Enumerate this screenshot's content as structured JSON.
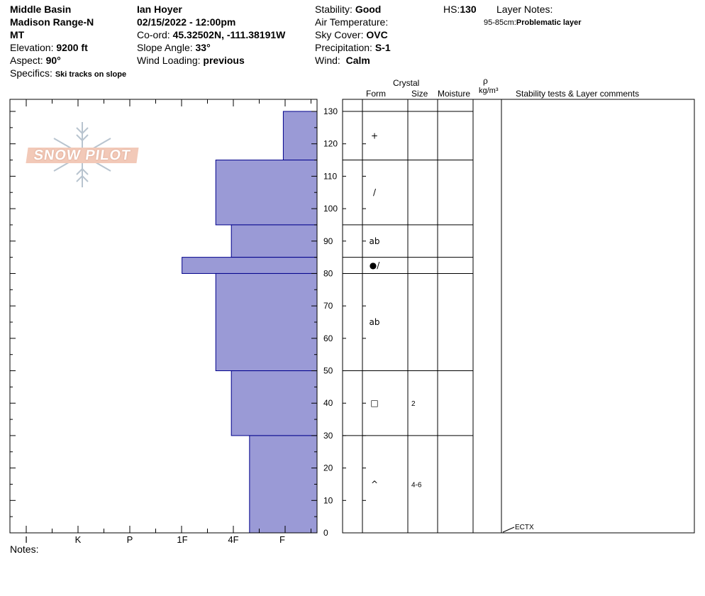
{
  "header": {
    "location": "Middle Basin",
    "range": "Madison Range-N",
    "state": "MT",
    "elevation_label": "Elevation:",
    "elevation_value": "9200 ft",
    "aspect_label": "Aspect:",
    "aspect_value": "90°",
    "specifics_label": "Specifics:",
    "specifics_value": "Ski tracks on slope",
    "observer": "Ian Hoyer",
    "datetime": "02/15/2022 - 12:00pm",
    "coord_label": "Co-ord:",
    "coord_value": "45.32502N, -111.38191W",
    "slope_label": "Slope Angle:",
    "slope_value": "33°",
    "wind_loading_label": "Wind Loading:",
    "wind_loading_value": "previous",
    "stability_label": "Stability:",
    "stability_value": "Good",
    "air_temp_label": "Air Temperature:",
    "sky_label": "Sky Cover:",
    "sky_value": "OVC",
    "precip_label": "Precipitation:",
    "precip_value": "S-1",
    "wind_label": "Wind:",
    "wind_value": "Calm",
    "hs_label": "HS:",
    "hs_value": "130",
    "layer_notes_label": "Layer Notes:",
    "layer_note_range": "95-85cm:",
    "layer_note_text": "Problematic layer"
  },
  "logo": {
    "text": "SNOW PILOT"
  },
  "columns": {
    "crystal": "Crystal",
    "form": "Form",
    "size": "Size",
    "moisture": "Moisture",
    "rho": "ρ",
    "density_unit": "kg/m³",
    "stability_comments": "Stability tests & Layer comments"
  },
  "notes_label": "Notes:",
  "stability_test": {
    "label": "ECTX",
    "depth": 0
  },
  "colors": {
    "hardness_fill": "#9a9ad6",
    "hardness_stroke": "#00008b"
  },
  "chart_data": {
    "type": "bar",
    "orientation": "horizontal",
    "x_categories": [
      "I",
      "K",
      "P",
      "1F",
      "4F",
      "F"
    ],
    "xlabel": "",
    "ylabel": "",
    "ylim": [
      0,
      130
    ],
    "y_ticks": [
      0,
      10,
      20,
      30,
      40,
      50,
      60,
      70,
      80,
      90,
      100,
      110,
      120,
      130
    ],
    "layers": [
      {
        "top": 130,
        "bottom": 115,
        "hardness": 0.65,
        "form": "+",
        "size": ""
      },
      {
        "top": 115,
        "bottom": 95,
        "hardness": 1.95,
        "form": "/",
        "size": ""
      },
      {
        "top": 95,
        "bottom": 85,
        "hardness": 1.65,
        "form": "ab",
        "size": ""
      },
      {
        "top": 85,
        "bottom": 80,
        "hardness": 2.6,
        "form": "●/",
        "size": ""
      },
      {
        "top": 80,
        "bottom": 50,
        "hardness": 1.95,
        "form": "ab",
        "size": ""
      },
      {
        "top": 50,
        "bottom": 30,
        "hardness": 1.65,
        "form": "□",
        "size": "2"
      },
      {
        "top": 30,
        "bottom": 0,
        "hardness": 1.3,
        "form": "^",
        "size": "4-6"
      }
    ]
  }
}
